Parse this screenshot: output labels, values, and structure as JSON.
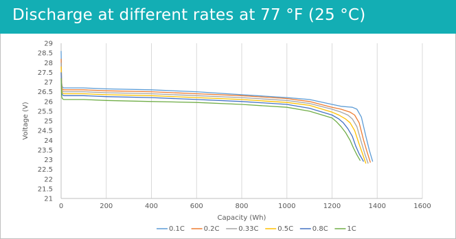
{
  "title": "Discharge at different rates at 77 °F (25 °C)",
  "chart_data": {
    "type": "line",
    "xlabel": "Capacity (Wh)",
    "ylabel": "Voltage (V)",
    "xlim": [
      0,
      1600
    ],
    "ylim": [
      21,
      29
    ],
    "xticks": [
      0,
      200,
      400,
      600,
      800,
      1000,
      1200,
      1400,
      1600
    ],
    "yticks": [
      21,
      21.5,
      22,
      22.5,
      23,
      23.5,
      24,
      24.5,
      25,
      25.5,
      26,
      26.5,
      27,
      27.5,
      28,
      28.5,
      29
    ],
    "grid": "vertical",
    "legend_position": "bottom",
    "series": [
      {
        "name": "0.1C",
        "color": "#5b9bd5",
        "x": [
          0,
          2,
          5,
          12,
          30,
          100,
          200,
          400,
          600,
          800,
          1000,
          1100,
          1200,
          1240,
          1290,
          1310,
          1330,
          1350,
          1365,
          1380
        ],
        "y": [
          28.6,
          27.0,
          26.75,
          26.7,
          26.7,
          26.7,
          26.65,
          26.6,
          26.5,
          26.35,
          26.2,
          26.1,
          25.85,
          25.75,
          25.7,
          25.6,
          25.2,
          24.2,
          23.5,
          22.9
        ]
      },
      {
        "name": "0.2C",
        "color": "#ed7d31",
        "x": [
          0,
          2,
          5,
          12,
          30,
          100,
          200,
          400,
          600,
          800,
          1000,
          1100,
          1200,
          1240,
          1280,
          1300,
          1320,
          1340,
          1355,
          1370
        ],
        "y": [
          28.2,
          26.9,
          26.65,
          26.6,
          26.6,
          26.6,
          26.55,
          26.5,
          26.4,
          26.3,
          26.15,
          26.0,
          25.7,
          25.6,
          25.45,
          25.3,
          24.9,
          24.0,
          23.4,
          22.85
        ]
      },
      {
        "name": "0.33C",
        "color": "#a5a5a5",
        "x": [
          0,
          2,
          5,
          12,
          30,
          100,
          200,
          400,
          600,
          800,
          1000,
          1100,
          1200,
          1240,
          1270,
          1290,
          1310,
          1330,
          1345,
          1360
        ],
        "y": [
          28.0,
          26.8,
          26.55,
          26.5,
          26.5,
          26.5,
          26.45,
          26.4,
          26.3,
          26.2,
          26.05,
          25.9,
          25.6,
          25.45,
          25.3,
          25.1,
          24.7,
          23.9,
          23.3,
          22.8
        ]
      },
      {
        "name": "0.5C",
        "color": "#ffc000",
        "x": [
          0,
          2,
          5,
          12,
          30,
          100,
          200,
          400,
          600,
          800,
          1000,
          1100,
          1200,
          1230,
          1260,
          1280,
          1300,
          1320,
          1335,
          1350
        ],
        "y": [
          27.8,
          26.7,
          26.45,
          26.4,
          26.4,
          26.4,
          26.35,
          26.3,
          26.2,
          26.1,
          25.95,
          25.8,
          25.45,
          25.3,
          25.1,
          24.9,
          24.5,
          23.8,
          23.3,
          22.8
        ]
      },
      {
        "name": "0.8C",
        "color": "#4472c4",
        "x": [
          0,
          2,
          5,
          12,
          30,
          100,
          200,
          400,
          600,
          800,
          1000,
          1100,
          1200,
          1230,
          1250,
          1270,
          1290,
          1305,
          1320,
          1340
        ],
        "y": [
          27.5,
          26.5,
          26.35,
          26.3,
          26.3,
          26.3,
          26.25,
          26.2,
          26.1,
          26.0,
          25.85,
          25.65,
          25.3,
          25.1,
          24.9,
          24.6,
          24.2,
          23.7,
          23.3,
          22.9
        ]
      },
      {
        "name": "1C",
        "color": "#70ad47",
        "x": [
          0,
          2,
          5,
          12,
          30,
          100,
          200,
          400,
          600,
          800,
          1000,
          1100,
          1200,
          1220,
          1240,
          1260,
          1280,
          1295,
          1310,
          1325
        ],
        "y": [
          27.2,
          26.3,
          26.15,
          26.1,
          26.1,
          26.1,
          26.05,
          26.0,
          25.95,
          25.85,
          25.7,
          25.5,
          25.15,
          24.95,
          24.7,
          24.4,
          24.0,
          23.6,
          23.25,
          22.95
        ]
      }
    ]
  }
}
